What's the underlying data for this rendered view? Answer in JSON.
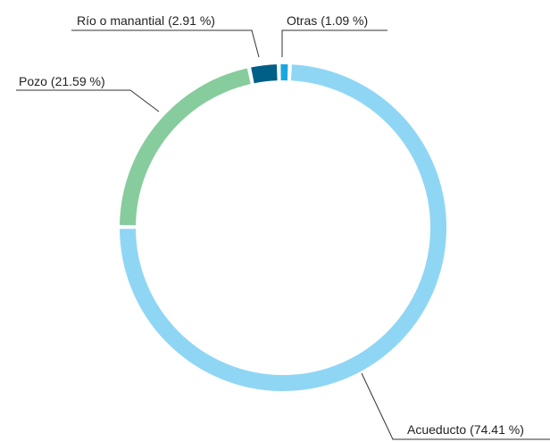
{
  "chart_data": {
    "type": "donut",
    "categories": [
      "Acueducto",
      "Pozo",
      "Río o manantial",
      "Otras"
    ],
    "values": [
      74.41,
      21.59,
      2.91,
      1.09
    ],
    "value_labels": [
      "(74.41 %)",
      "(21.59 %)",
      "(2.91 %)",
      "(1.09 %)"
    ],
    "colors": [
      "#8fd6f5",
      "#86cc9c",
      "#005f87",
      "#1aa7e0"
    ]
  }
}
